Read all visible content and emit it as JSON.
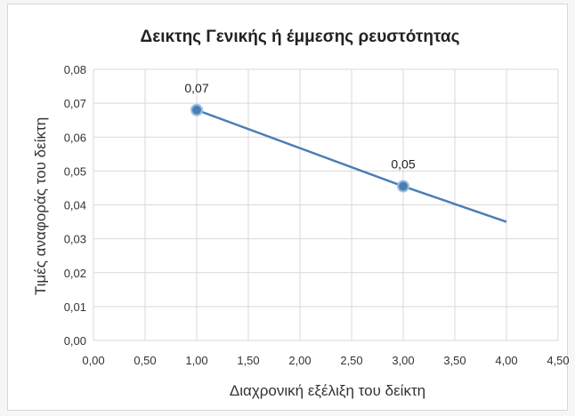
{
  "chart_data": {
    "type": "line",
    "title": "Δεικτης Γενικής ή έμμεσης ρευστότητας",
    "xlabel": "Διαχρονική εξέλιξη του δείκτη",
    "ylabel": "Τιμές αναφοράς του δείκτη",
    "xlim": [
      0,
      4.5
    ],
    "ylim": [
      0,
      0.08
    ],
    "x_ticks": [
      "0,00",
      "0,50",
      "1,00",
      "1,50",
      "2,00",
      "2,50",
      "3,00",
      "3,50",
      "4,00",
      "4,50"
    ],
    "y_ticks": [
      "0,00",
      "0,01",
      "0,02",
      "0,03",
      "0,04",
      "0,05",
      "0,06",
      "0,07",
      "0,08"
    ],
    "grid": true,
    "series": [
      {
        "color": "#4a7fb5",
        "points": [
          {
            "x": 1,
            "y": 0.068,
            "marker": true,
            "label": "0,07"
          },
          {
            "x": 3,
            "y": 0.0455,
            "marker": true,
            "label": "0,05"
          },
          {
            "x": 4,
            "y": 0.035,
            "marker": false,
            "label": ""
          }
        ]
      }
    ]
  }
}
